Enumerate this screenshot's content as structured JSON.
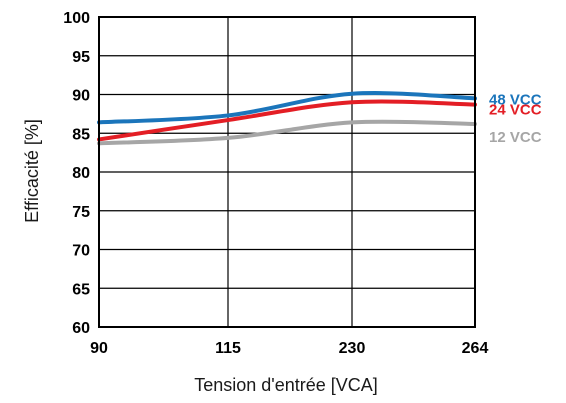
{
  "chart_data": {
    "type": "line",
    "xlabel": "Tension d'entrée [VCA]",
    "ylabel": "Efficacité [%]",
    "x_tick_labels": [
      "90",
      "115",
      "230",
      "264"
    ],
    "y_tick_labels": [
      "60",
      "65",
      "70",
      "75",
      "80",
      "85",
      "90",
      "95",
      "100"
    ],
    "ylim": [
      60,
      100
    ],
    "grid": true,
    "legend_placement": "right, at line ends",
    "series": [
      {
        "name": "48 VCC",
        "color": "#1b75bb",
        "points": [
          {
            "x": "90",
            "y": 86.4
          },
          {
            "x": "115",
            "y": 87.3
          },
          {
            "x": "230",
            "y": 90.1
          },
          {
            "x": "264",
            "y": 89.5
          }
        ]
      },
      {
        "name": "24 VCC",
        "color": "#e31e25",
        "points": [
          {
            "x": "90",
            "y": 84.2
          },
          {
            "x": "115",
            "y": 86.7
          },
          {
            "x": "230",
            "y": 89.0
          },
          {
            "x": "264",
            "y": 88.7
          }
        ]
      },
      {
        "name": "12 VCC",
        "color": "#a6a6a6",
        "points": [
          {
            "x": "90",
            "y": 83.7
          },
          {
            "x": "115",
            "y": 84.4
          },
          {
            "x": "230",
            "y": 86.4
          },
          {
            "x": "264",
            "y": 86.2
          }
        ]
      }
    ]
  }
}
